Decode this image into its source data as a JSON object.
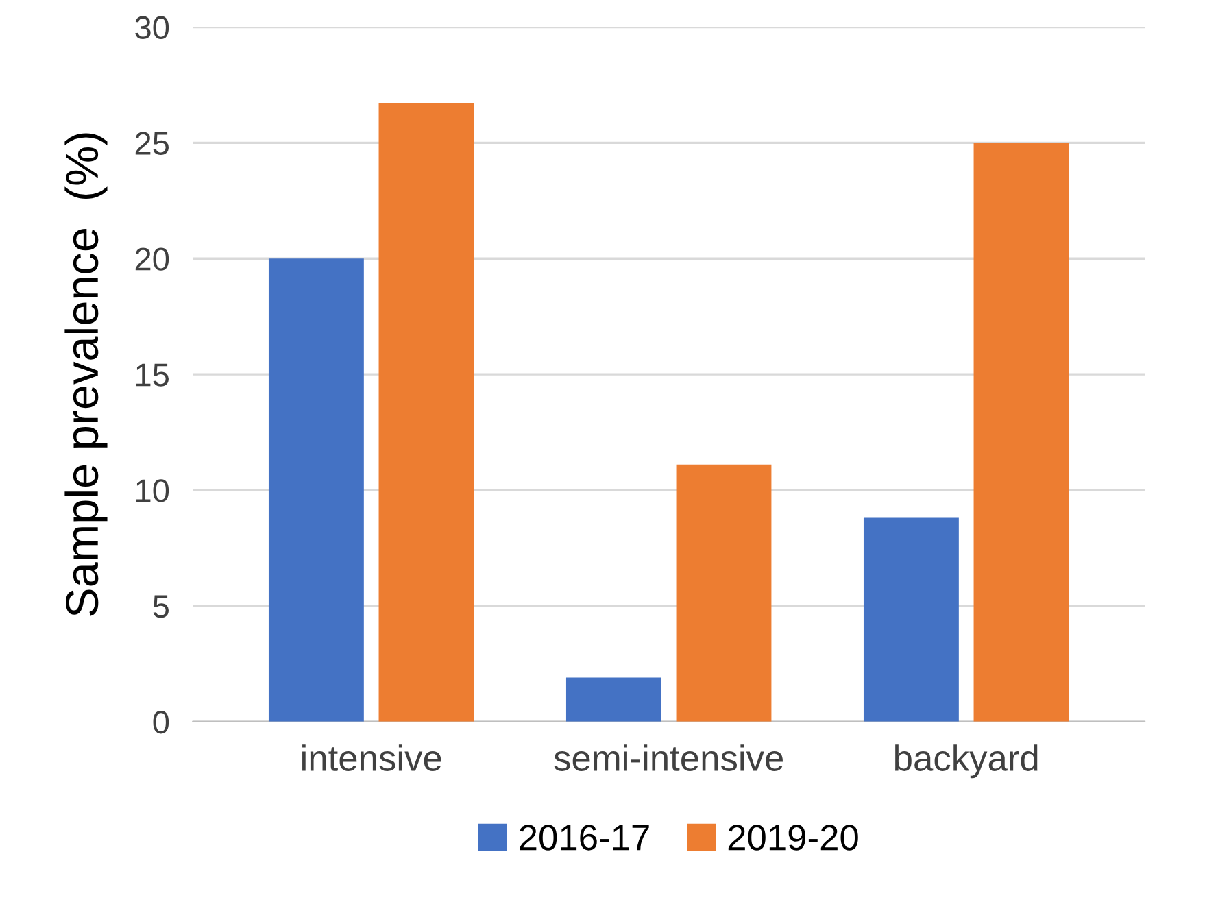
{
  "chart_data": {
    "type": "bar",
    "ylabel": "Sample prevalence  (%)",
    "categories": [
      "intensive",
      "semi-intensive",
      "backyard"
    ],
    "series": [
      {
        "name": "2016-17",
        "color": "#4472c4",
        "values": [
          20,
          1.9,
          8.8
        ]
      },
      {
        "name": "2019-20",
        "color": "#ed7d31",
        "values": [
          26.7,
          11.1,
          25
        ]
      }
    ],
    "ylim": [
      0,
      30
    ],
    "yticks": [
      0,
      5,
      10,
      15,
      20,
      25,
      30
    ],
    "grid": "y",
    "legend": "bottom"
  }
}
